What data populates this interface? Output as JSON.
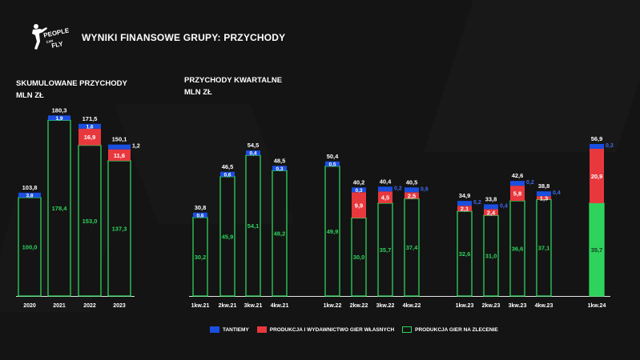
{
  "header": {
    "title": "WYNIKI FINANSOWE GRUPY: PRZYCHODY",
    "logo_text": [
      "PEOPLE",
      "CAN",
      "FLY"
    ]
  },
  "colors": {
    "background": "#141414",
    "blue": "#1a4fe0",
    "red": "#e8383d",
    "green": "#2ed35d",
    "green_fill": "#2ed35d",
    "label_blue": "#3f6bf0",
    "label_green": "#2ed35d"
  },
  "legend": [
    {
      "key": "tantiemy",
      "label": "TANTIEMY",
      "color": "#1a4fe0"
    },
    {
      "key": "produkcja_wlasna",
      "label": "PRODUKCJA I WYDAWNICTWO GIER WŁASNYCH",
      "color": "#e8383d"
    },
    {
      "key": "zlecenie",
      "label": "PRODUKCJA GIER NA ZLECENIE",
      "color": "#2ed35d"
    }
  ],
  "chart_data": [
    {
      "type": "bar",
      "stacked": true,
      "title": "SKUMULOWANE PRZYCHODY",
      "subtitle": "MLN ZŁ",
      "categories": [
        "2020",
        "2021",
        "2022",
        "2023"
      ],
      "series": [
        {
          "name": "PRODUKCJA GIER NA ZLECENIE",
          "values": [
            100.0,
            178.4,
            153.0,
            137.3
          ],
          "labels": [
            "100,0",
            "178,4",
            "153,0",
            "137,3"
          ]
        },
        {
          "name": "PRODUKCJA I WYDAWNICTWO GIER WŁASNYCH",
          "values": [
            0,
            0,
            16.9,
            11.6
          ],
          "labels": [
            "",
            "",
            "16,9",
            "11,6"
          ]
        },
        {
          "name": "TANTIEMY",
          "values": [
            3.8,
            1.9,
            1.6,
            1.2
          ],
          "labels": [
            "3,8",
            "1,9",
            "1,6",
            "1,2"
          ]
        }
      ],
      "totals": [
        103.8,
        180.3,
        171.5,
        150.1
      ],
      "total_labels": [
        "103,8",
        "180,3",
        "171,5",
        "150,1"
      ]
    },
    {
      "type": "bar",
      "stacked": true,
      "title": "PRZYCHODY KWARTALNE",
      "subtitle": "MLN ZŁ",
      "categories": [
        "1kw.21",
        "2kw.21",
        "3kw.21",
        "4kw.21",
        "1kw.22",
        "2kw.22",
        "3kw.22",
        "4kw.22",
        "1kw.23",
        "2kw.23",
        "3kw.23",
        "4kw.23",
        "1kw.24"
      ],
      "series": [
        {
          "name": "PRODUKCJA GIER NA ZLECENIE",
          "values": [
            30.2,
            45.9,
            54.1,
            48.2,
            49.9,
            30.0,
            35.7,
            37.4,
            32.6,
            31.0,
            36.6,
            37.1,
            35.7
          ],
          "labels": [
            "30,2",
            "45,9",
            "54,1",
            "48,2",
            "49,9",
            "30,0",
            "35,7",
            "37,4",
            "32,6",
            "31,0",
            "36,6",
            "37,1",
            "35,7"
          ]
        },
        {
          "name": "PRODUKCJA I WYDAWNICTWO GIER WŁASNYCH",
          "values": [
            0,
            0,
            0,
            0,
            0,
            9.9,
            4.5,
            2.5,
            2.1,
            2.4,
            5.8,
            1.3,
            20.9
          ],
          "labels": [
            "",
            "",
            "",
            "",
            "",
            "9,9",
            "4,5",
            "2,5",
            "2,1",
            "2,4",
            "5,8",
            "1,3",
            "20,9"
          ]
        },
        {
          "name": "TANTIEMY",
          "values": [
            0.6,
            0.6,
            0.4,
            0.3,
            0.5,
            0.3,
            0.2,
            0.6,
            0.2,
            0.4,
            0.2,
            0.4,
            0.3
          ],
          "labels": [
            "0,6",
            "0,6",
            "0,4",
            "0,3",
            "0,5",
            "0,3",
            "0,2",
            "0,6",
            "0,2",
            "0,4",
            "0,2",
            "0,4",
            "0,3"
          ]
        }
      ],
      "totals": [
        30.8,
        46.5,
        54.5,
        48.5,
        50.4,
        40.2,
        40.4,
        40.5,
        34.9,
        33.8,
        42.6,
        38.8,
        56.9
      ],
      "total_labels": [
        "30,8",
        "46,5",
        "54,5",
        "48,5",
        "50,4",
        "40,2",
        "40,4",
        "40,5",
        "34,9",
        "33,8",
        "42,6",
        "38,8",
        "56,9"
      ],
      "highlighted_category": "1kw.24"
    }
  ]
}
